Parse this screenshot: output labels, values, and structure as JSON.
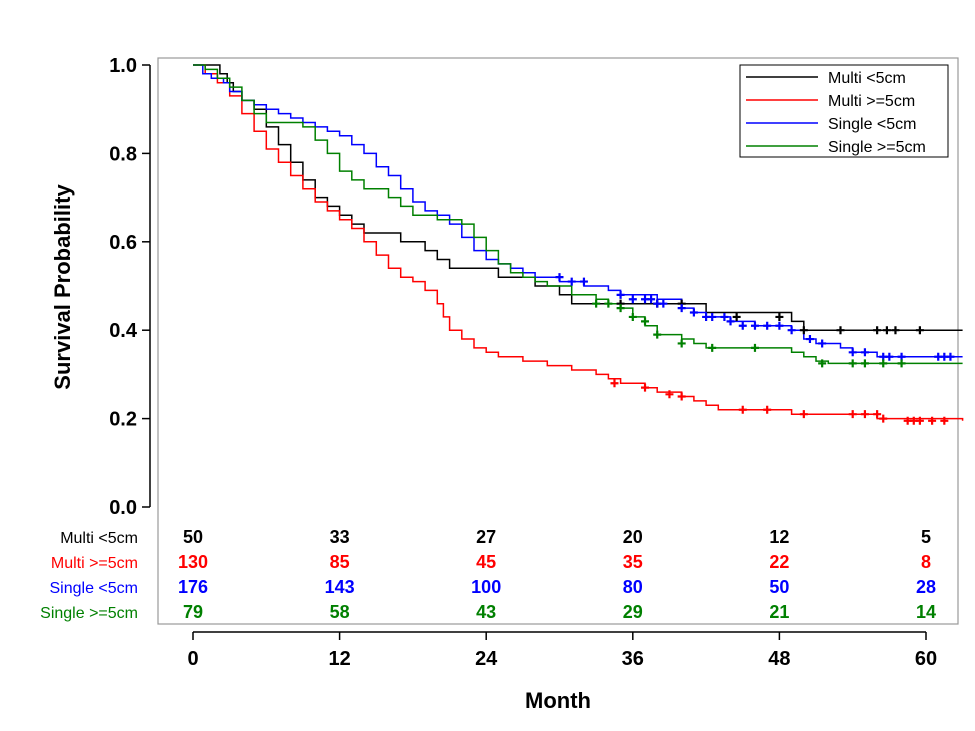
{
  "chart_data": {
    "type": "line",
    "subtype": "kaplan-meier",
    "xlabel": "Month",
    "ylabel": "Survival Probability",
    "xlim": [
      0,
      63
    ],
    "ylim": [
      0,
      1
    ],
    "x_ticks": [
      "0",
      "12",
      "24",
      "36",
      "48",
      "60"
    ],
    "y_ticks": [
      "0.0",
      "0.2",
      "0.4",
      "0.6",
      "0.8",
      "1.0"
    ],
    "legend_position": "top-right",
    "grid": false,
    "series": [
      {
        "name": "Multi <5cm",
        "color": "#000000",
        "steps": [
          [
            0,
            1.0
          ],
          [
            1.5,
            1.0
          ],
          [
            2.2,
            0.98
          ],
          [
            2.8,
            0.96
          ],
          [
            3.3,
            0.94
          ],
          [
            4,
            0.92
          ],
          [
            5,
            0.9
          ],
          [
            6,
            0.86
          ],
          [
            7,
            0.82
          ],
          [
            8,
            0.78
          ],
          [
            9,
            0.74
          ],
          [
            10,
            0.7
          ],
          [
            11,
            0.68
          ],
          [
            12,
            0.66
          ],
          [
            13,
            0.64
          ],
          [
            14,
            0.62
          ],
          [
            17,
            0.6
          ],
          [
            19,
            0.58
          ],
          [
            20,
            0.56
          ],
          [
            21,
            0.54
          ],
          [
            25,
            0.52
          ],
          [
            28,
            0.5
          ],
          [
            30,
            0.48
          ],
          [
            31,
            0.46
          ],
          [
            40,
            0.46
          ],
          [
            42,
            0.44
          ],
          [
            49,
            0.42
          ],
          [
            50,
            0.4
          ],
          [
            63,
            0.4
          ]
        ],
        "censors": [
          [
            35,
            0.46
          ],
          [
            38,
            0.46
          ],
          [
            40,
            0.46
          ],
          [
            44.5,
            0.43
          ],
          [
            48,
            0.43
          ],
          [
            50,
            0.4
          ],
          [
            53,
            0.4
          ],
          [
            56,
            0.4
          ],
          [
            56.8,
            0.4
          ],
          [
            57.5,
            0.4
          ],
          [
            59.5,
            0.4
          ]
        ]
      },
      {
        "name": "Multi >=5cm",
        "color": "#ff0000",
        "steps": [
          [
            0,
            1.0
          ],
          [
            1,
            0.98
          ],
          [
            2,
            0.96
          ],
          [
            3,
            0.93
          ],
          [
            4,
            0.89
          ],
          [
            5,
            0.85
          ],
          [
            6,
            0.81
          ],
          [
            7,
            0.78
          ],
          [
            8,
            0.75
          ],
          [
            9,
            0.72
          ],
          [
            10,
            0.69
          ],
          [
            11,
            0.67
          ],
          [
            12,
            0.65
          ],
          [
            13,
            0.63
          ],
          [
            14,
            0.6
          ],
          [
            15,
            0.57
          ],
          [
            16,
            0.54
          ],
          [
            17,
            0.52
          ],
          [
            18,
            0.51
          ],
          [
            19,
            0.49
          ],
          [
            20,
            0.46
          ],
          [
            20.5,
            0.43
          ],
          [
            21,
            0.4
          ],
          [
            22,
            0.38
          ],
          [
            23,
            0.36
          ],
          [
            24,
            0.35
          ],
          [
            25,
            0.34
          ],
          [
            27,
            0.33
          ],
          [
            29,
            0.32
          ],
          [
            31,
            0.31
          ],
          [
            33,
            0.3
          ],
          [
            34,
            0.29
          ],
          [
            35,
            0.28
          ],
          [
            37,
            0.27
          ],
          [
            38,
            0.26
          ],
          [
            40,
            0.25
          ],
          [
            41,
            0.24
          ],
          [
            42,
            0.23
          ],
          [
            43,
            0.22
          ],
          [
            46,
            0.22
          ],
          [
            49,
            0.21
          ],
          [
            55,
            0.21
          ],
          [
            56,
            0.2
          ],
          [
            63,
            0.195
          ]
        ],
        "censors": [
          [
            34.5,
            0.28
          ],
          [
            37,
            0.27
          ],
          [
            39,
            0.255
          ],
          [
            40,
            0.25
          ],
          [
            45,
            0.22
          ],
          [
            47,
            0.22
          ],
          [
            50,
            0.21
          ],
          [
            54,
            0.21
          ],
          [
            55,
            0.21
          ],
          [
            56,
            0.21
          ],
          [
            56.5,
            0.2
          ],
          [
            58.5,
            0.195
          ],
          [
            59,
            0.195
          ],
          [
            59.5,
            0.195
          ],
          [
            60.5,
            0.195
          ],
          [
            61.5,
            0.195
          ]
        ]
      },
      {
        "name": "Single <5cm",
        "color": "#0000ff",
        "steps": [
          [
            0,
            1.0
          ],
          [
            0.8,
            0.98
          ],
          [
            1.5,
            0.97
          ],
          [
            2.5,
            0.96
          ],
          [
            3,
            0.94
          ],
          [
            4,
            0.92
          ],
          [
            5,
            0.91
          ],
          [
            6,
            0.9
          ],
          [
            7,
            0.89
          ],
          [
            8,
            0.88
          ],
          [
            9,
            0.87
          ],
          [
            10,
            0.86
          ],
          [
            11,
            0.85
          ],
          [
            12,
            0.84
          ],
          [
            13,
            0.82
          ],
          [
            14,
            0.8
          ],
          [
            15,
            0.77
          ],
          [
            16,
            0.75
          ],
          [
            17,
            0.72
          ],
          [
            18,
            0.69
          ],
          [
            19,
            0.67
          ],
          [
            20,
            0.66
          ],
          [
            21,
            0.64
          ],
          [
            22,
            0.61
          ],
          [
            23,
            0.58
          ],
          [
            24,
            0.56
          ],
          [
            25,
            0.55
          ],
          [
            26,
            0.54
          ],
          [
            27,
            0.53
          ],
          [
            28,
            0.52
          ],
          [
            30,
            0.51
          ],
          [
            32,
            0.5
          ],
          [
            34,
            0.49
          ],
          [
            35,
            0.48
          ],
          [
            38,
            0.47
          ],
          [
            40,
            0.45
          ],
          [
            41,
            0.44
          ],
          [
            42,
            0.43
          ],
          [
            44,
            0.42
          ],
          [
            46,
            0.41
          ],
          [
            49,
            0.4
          ],
          [
            50,
            0.38
          ],
          [
            51,
            0.37
          ],
          [
            53,
            0.36
          ],
          [
            54,
            0.35
          ],
          [
            56,
            0.34
          ],
          [
            63,
            0.34
          ]
        ],
        "censors": [
          [
            30,
            0.52
          ],
          [
            31,
            0.51
          ],
          [
            32,
            0.51
          ],
          [
            35,
            0.48
          ],
          [
            36,
            0.47
          ],
          [
            37,
            0.47
          ],
          [
            37.5,
            0.47
          ],
          [
            38,
            0.46
          ],
          [
            38.5,
            0.46
          ],
          [
            40,
            0.45
          ],
          [
            41,
            0.44
          ],
          [
            42,
            0.43
          ],
          [
            42.5,
            0.43
          ],
          [
            43.5,
            0.43
          ],
          [
            44,
            0.42
          ],
          [
            45,
            0.41
          ],
          [
            46,
            0.41
          ],
          [
            47,
            0.41
          ],
          [
            48,
            0.41
          ],
          [
            49,
            0.4
          ],
          [
            50.5,
            0.38
          ],
          [
            51.5,
            0.37
          ],
          [
            54,
            0.35
          ],
          [
            55,
            0.35
          ],
          [
            56.5,
            0.34
          ],
          [
            57,
            0.34
          ],
          [
            58,
            0.34
          ],
          [
            61,
            0.34
          ],
          [
            61.5,
            0.34
          ],
          [
            62,
            0.34
          ]
        ]
      },
      {
        "name": "Single >=5cm",
        "color": "#008000",
        "steps": [
          [
            0,
            1.0
          ],
          [
            1,
            0.99
          ],
          [
            2,
            0.97
          ],
          [
            3,
            0.95
          ],
          [
            4,
            0.92
          ],
          [
            5,
            0.89
          ],
          [
            6,
            0.87
          ],
          [
            9,
            0.86
          ],
          [
            10,
            0.83
          ],
          [
            11,
            0.8
          ],
          [
            12,
            0.76
          ],
          [
            13,
            0.74
          ],
          [
            14,
            0.72
          ],
          [
            16,
            0.7
          ],
          [
            17,
            0.68
          ],
          [
            18,
            0.66
          ],
          [
            20,
            0.65
          ],
          [
            22,
            0.64
          ],
          [
            23,
            0.61
          ],
          [
            24,
            0.58
          ],
          [
            25,
            0.55
          ],
          [
            26,
            0.53
          ],
          [
            27,
            0.52
          ],
          [
            28,
            0.51
          ],
          [
            29,
            0.5
          ],
          [
            31,
            0.48
          ],
          [
            33,
            0.47
          ],
          [
            34,
            0.46
          ],
          [
            35,
            0.45
          ],
          [
            36,
            0.43
          ],
          [
            37,
            0.41
          ],
          [
            38,
            0.39
          ],
          [
            40,
            0.38
          ],
          [
            41,
            0.37
          ],
          [
            42,
            0.36
          ],
          [
            47,
            0.36
          ],
          [
            49,
            0.35
          ],
          [
            50,
            0.34
          ],
          [
            51,
            0.33
          ],
          [
            52,
            0.325
          ],
          [
            63,
            0.325
          ]
        ],
        "censors": [
          [
            33,
            0.46
          ],
          [
            34,
            0.46
          ],
          [
            35,
            0.45
          ],
          [
            36,
            0.43
          ],
          [
            37,
            0.42
          ],
          [
            38,
            0.39
          ],
          [
            40,
            0.37
          ],
          [
            42.5,
            0.36
          ],
          [
            46,
            0.36
          ],
          [
            51.5,
            0.325
          ],
          [
            54,
            0.325
          ],
          [
            55,
            0.325
          ],
          [
            56.5,
            0.325
          ],
          [
            58,
            0.325
          ]
        ]
      }
    ],
    "risk_table": {
      "times": [
        "0",
        "12",
        "24",
        "36",
        "48",
        "60"
      ],
      "rows": [
        {
          "label": "Multi <5cm",
          "color": "#000000",
          "counts": [
            "50",
            "33",
            "27",
            "20",
            "12",
            "5"
          ]
        },
        {
          "label": "Multi >=5cm",
          "color": "#ff0000",
          "counts": [
            "130",
            "85",
            "45",
            "35",
            "22",
            "8"
          ]
        },
        {
          "label": "Single <5cm",
          "color": "#0000ff",
          "counts": [
            "176",
            "143",
            "100",
            "80",
            "50",
            "28"
          ]
        },
        {
          "label": "Single >=5cm",
          "color": "#008000",
          "counts": [
            "79",
            "58",
            "43",
            "29",
            "21",
            "14"
          ]
        }
      ]
    }
  }
}
